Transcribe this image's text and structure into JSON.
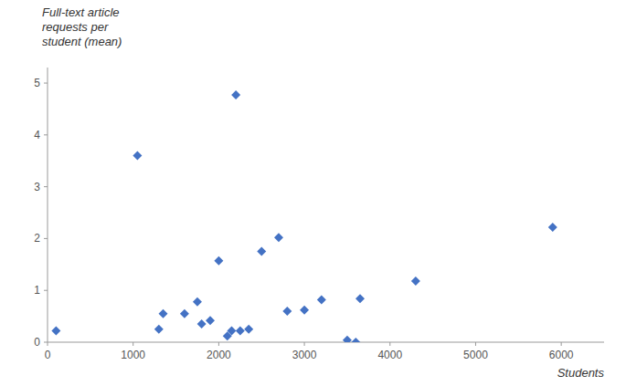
{
  "chart_data": {
    "type": "scatter",
    "x": [
      100,
      1050,
      1300,
      1350,
      1600,
      1750,
      1800,
      1900,
      2000,
      2100,
      2150,
      2200,
      2250,
      2350,
      2500,
      2700,
      2800,
      3000,
      3200,
      3500,
      3600,
      3650,
      4300,
      5900
    ],
    "values": [
      0.22,
      3.6,
      0.25,
      0.55,
      0.55,
      0.78,
      0.35,
      0.42,
      1.57,
      0.12,
      0.22,
      4.77,
      0.22,
      0.25,
      1.75,
      2.02,
      0.6,
      0.62,
      0.82,
      0.04,
      0.0,
      0.84,
      1.18,
      2.22
    ],
    "xlabel": "Students",
    "ylabel": [
      "Full-text article",
      "requests per",
      "student (mean)"
    ],
    "xlim": [
      0,
      6500
    ],
    "ylim": [
      0,
      5.3
    ],
    "xticks": [
      0,
      1000,
      2000,
      3000,
      4000,
      5000,
      6000
    ],
    "yticks": [
      0,
      1,
      2,
      3,
      4,
      5
    ],
    "color": "#4472C4",
    "marker": "diamond",
    "grid": false
  }
}
